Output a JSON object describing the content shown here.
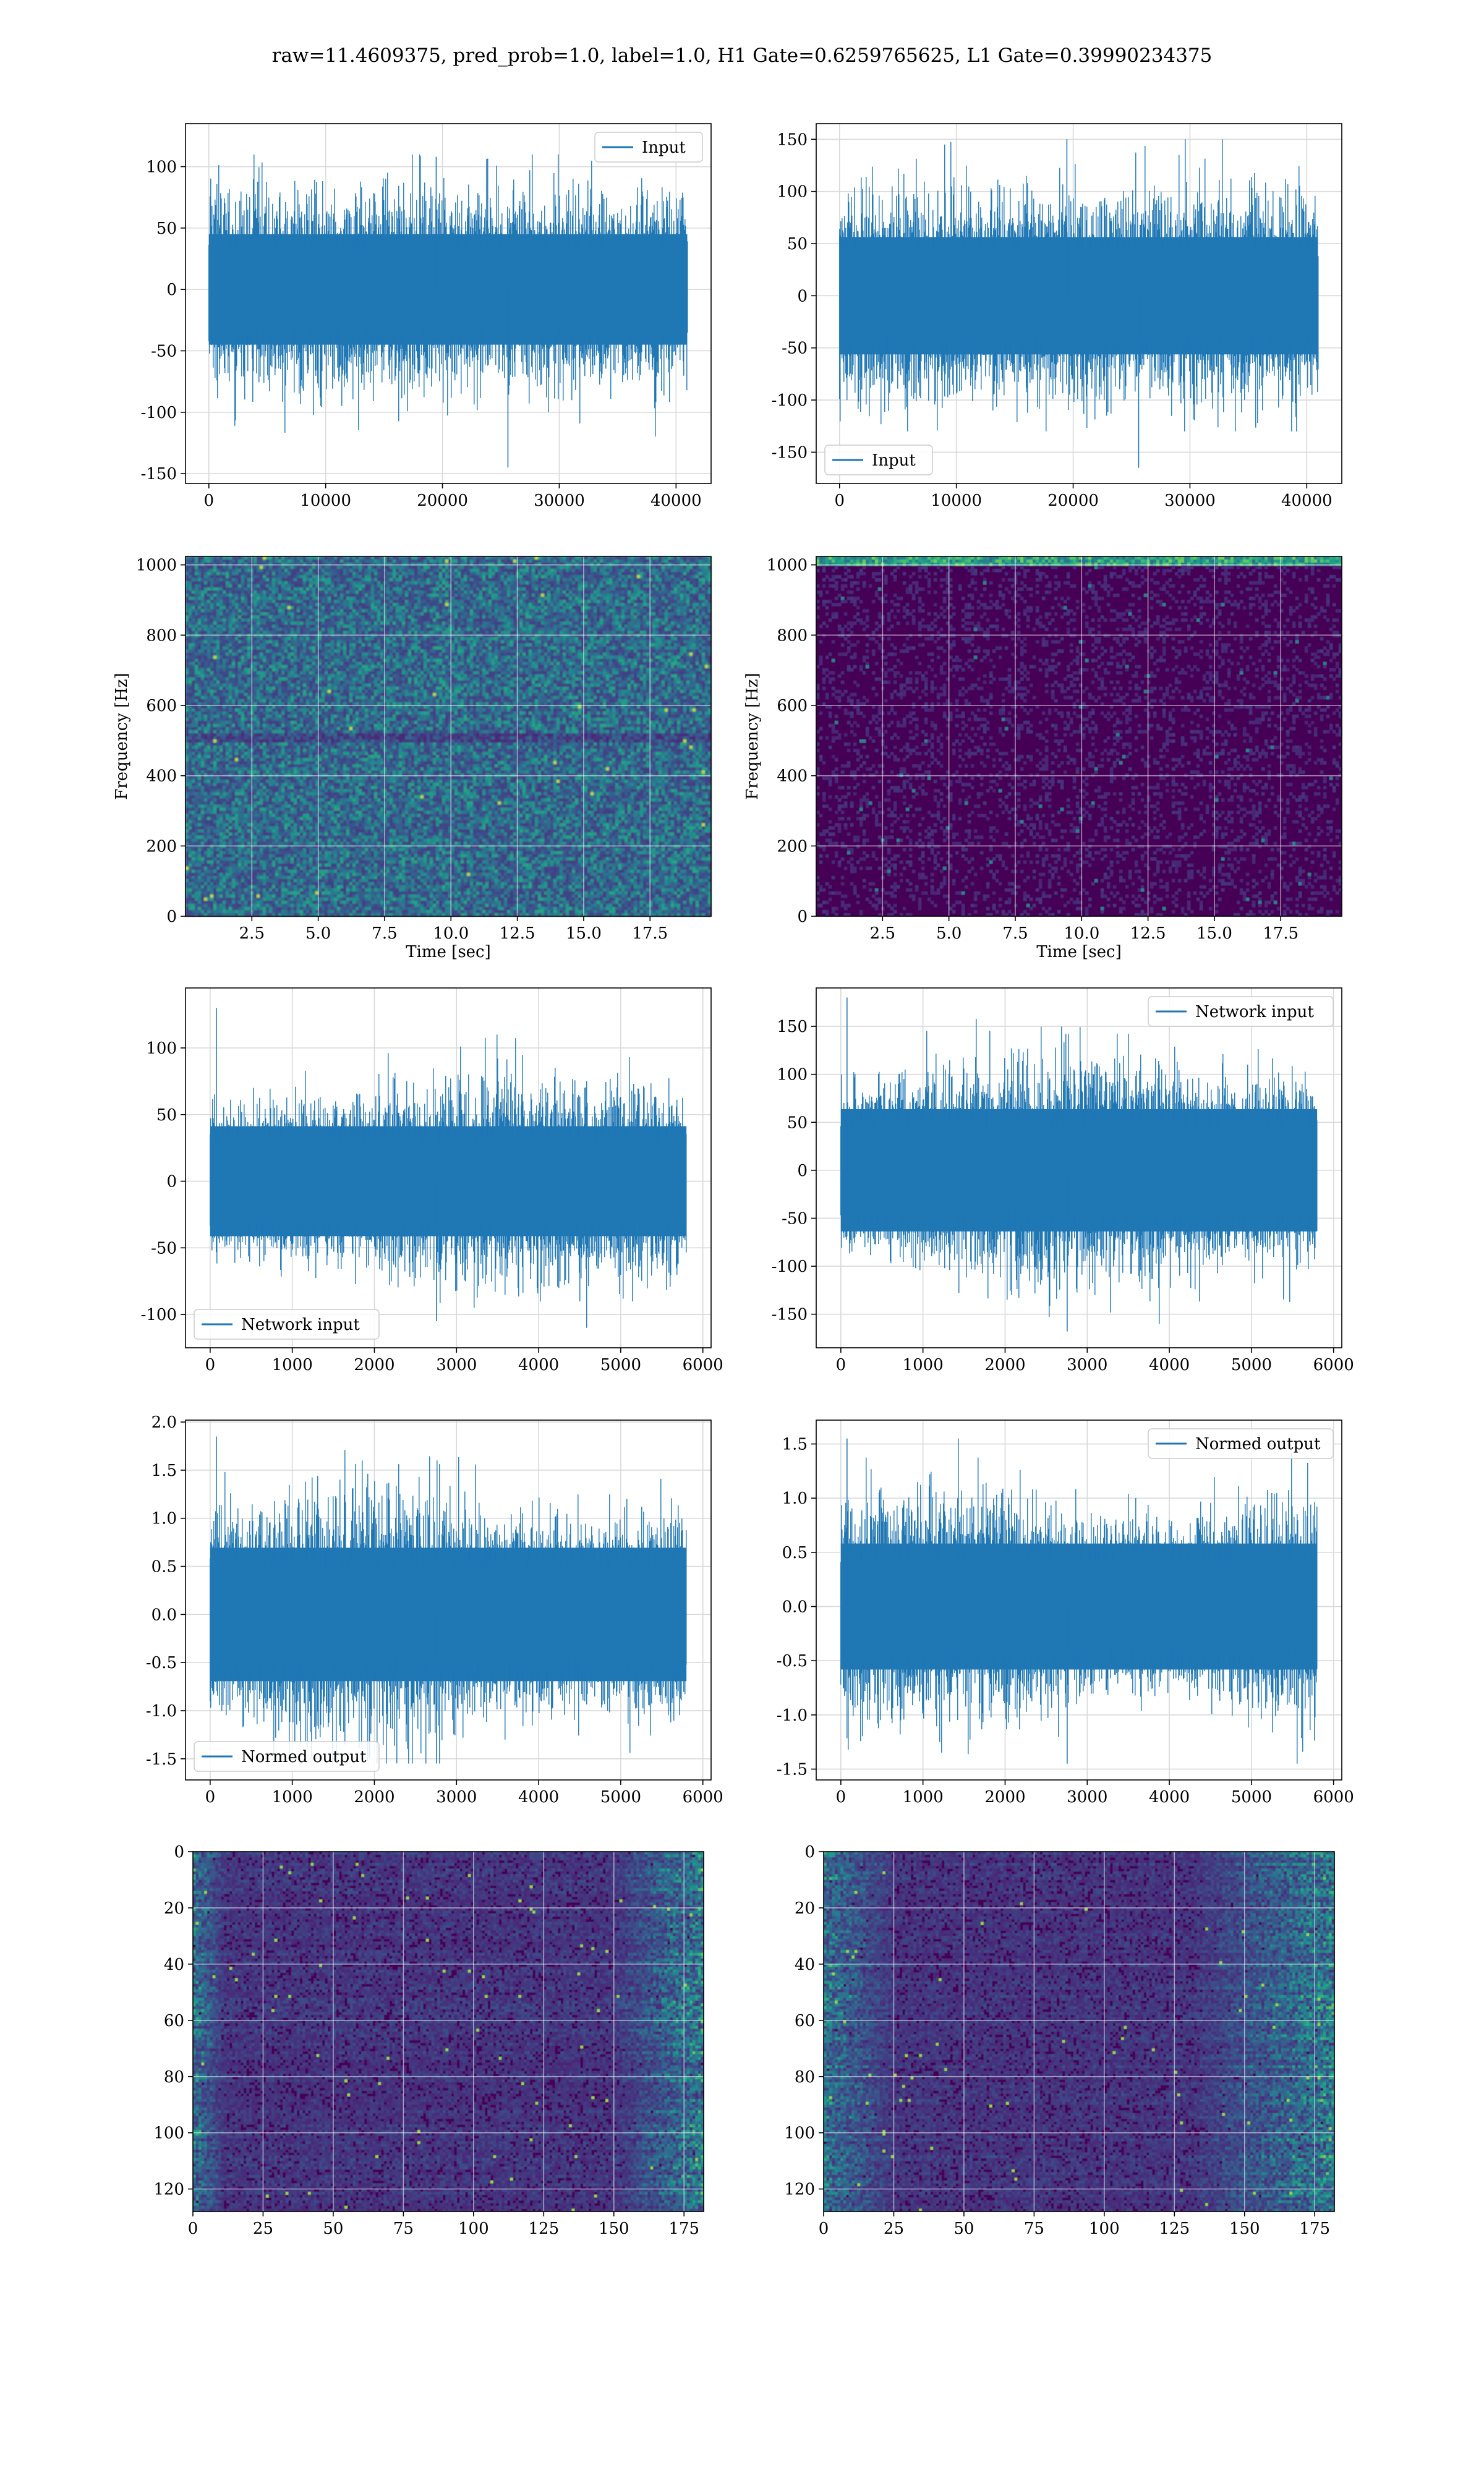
{
  "figure": {
    "title": "raw=11.4609375, pred_prob=1.0, label=1.0, H1 Gate=0.6259765625, L1 Gate=0.39990234375"
  },
  "colors": {
    "line": "#1f77b4",
    "grid": "#d9d9d9",
    "viridis_low": "#440154",
    "viridis_high": "#fde725"
  },
  "chart_data": [
    {
      "id": "h1-input",
      "type": "line",
      "series": [
        {
          "name": "Input",
          "n_points": 40960,
          "envelope": [
            -120,
            110
          ],
          "outliers": [
            -145,
            108
          ]
        }
      ],
      "xlim": [
        -2000,
        43000
      ],
      "ylim": [
        -158,
        135
      ],
      "xticks": [
        0,
        10000,
        20000,
        30000,
        40000
      ],
      "yticks": [
        -150,
        -100,
        -50,
        0,
        50,
        100
      ],
      "legend": "upper right",
      "grid": true,
      "xlabel": "",
      "ylabel": ""
    },
    {
      "id": "l1-input",
      "type": "line",
      "series": [
        {
          "name": "Input",
          "n_points": 40960,
          "envelope": [
            -130,
            150
          ],
          "outliers": [
            -165,
            150
          ]
        }
      ],
      "xlim": [
        -2000,
        43000
      ],
      "ylim": [
        -180,
        165
      ],
      "xticks": [
        0,
        10000,
        20000,
        30000,
        40000
      ],
      "yticks": [
        -150,
        -100,
        -50,
        0,
        50,
        100,
        150
      ],
      "legend": "lower left",
      "grid": true,
      "xlabel": "",
      "ylabel": ""
    },
    {
      "id": "h1-spectrogram",
      "type": "heatmap",
      "xlim": [
        0,
        19.8
      ],
      "ylim": [
        0,
        1024
      ],
      "xticks": [
        2.5,
        5.0,
        7.5,
        10.0,
        12.5,
        15.0,
        17.5
      ],
      "yticks": [
        0,
        200,
        400,
        600,
        800,
        1000
      ],
      "xlabel": "Time [sec]",
      "ylabel": "Frequency [Hz]",
      "colormap": "viridis",
      "grid": true,
      "intensity": "uniform noisy, brighter speckles"
    },
    {
      "id": "l1-spectrogram",
      "type": "heatmap",
      "xlim": [
        0,
        19.8
      ],
      "ylim": [
        0,
        1024
      ],
      "xticks": [
        2.5,
        5.0,
        7.5,
        10.0,
        12.5,
        15.0,
        17.5
      ],
      "yticks": [
        0,
        200,
        400,
        600,
        800,
        1000
      ],
      "xlabel": "Time [sec]",
      "ylabel": "Frequency [Hz]",
      "colormap": "viridis",
      "grid": true,
      "intensity": "mostly dark, bright band near 1000 Hz"
    },
    {
      "id": "h1-network-input",
      "type": "line",
      "series": [
        {
          "name": "Network input",
          "n_points": 5800,
          "envelope": [
            -110,
            110
          ],
          "outliers": [
            130,
            -105
          ]
        }
      ],
      "xlim": [
        -300,
        6100
      ],
      "ylim": [
        -125,
        145
      ],
      "xticks": [
        0,
        1000,
        2000,
        3000,
        4000,
        5000,
        6000
      ],
      "yticks": [
        -100,
        -50,
        0,
        50,
        100
      ],
      "legend": "lower left",
      "grid": true,
      "xlabel": "",
      "ylabel": ""
    },
    {
      "id": "l1-network-input",
      "type": "line",
      "series": [
        {
          "name": "Network input",
          "n_points": 5800,
          "envelope": [
            -160,
            170
          ],
          "outliers": [
            180,
            -168
          ]
        }
      ],
      "xlim": [
        -300,
        6100
      ],
      "ylim": [
        -185,
        190
      ],
      "xticks": [
        0,
        1000,
        2000,
        3000,
        4000,
        5000,
        6000
      ],
      "yticks": [
        -150,
        -100,
        -50,
        0,
        50,
        100,
        150
      ],
      "legend": "upper right",
      "grid": true,
      "xlabel": "",
      "ylabel": ""
    },
    {
      "id": "h1-normed-output",
      "type": "line",
      "series": [
        {
          "name": "Normed output",
          "n_points": 5800,
          "envelope": [
            -1.55,
            1.85
          ],
          "outliers": [
            1.85,
            -1.55
          ]
        }
      ],
      "xlim": [
        -300,
        6100
      ],
      "ylim": [
        -1.72,
        2.02
      ],
      "xticks": [
        0,
        1000,
        2000,
        3000,
        4000,
        5000,
        6000
      ],
      "yticks": [
        -1.5,
        -1.0,
        -0.5,
        0.0,
        0.5,
        1.0,
        1.5,
        2.0
      ],
      "legend": "lower left",
      "grid": true,
      "xlabel": "",
      "ylabel": ""
    },
    {
      "id": "l1-normed-output",
      "type": "line",
      "series": [
        {
          "name": "Normed output",
          "n_points": 5800,
          "envelope": [
            -1.45,
            1.55
          ],
          "outliers": [
            1.55,
            -1.45
          ]
        }
      ],
      "xlim": [
        -300,
        6100
      ],
      "ylim": [
        -1.6,
        1.72
      ],
      "xticks": [
        0,
        1000,
        2000,
        3000,
        4000,
        5000,
        6000
      ],
      "yticks": [
        -1.5,
        -1.0,
        -0.5,
        0.0,
        0.5,
        1.0,
        1.5
      ],
      "legend": "upper right",
      "grid": true,
      "xlabel": "",
      "ylabel": ""
    },
    {
      "id": "h1-feature-map",
      "type": "heatmap",
      "xlim": [
        0,
        182
      ],
      "ylim": [
        128,
        0
      ],
      "xticks": [
        0,
        25,
        50,
        75,
        100,
        125,
        150,
        175
      ],
      "yticks": [
        0,
        20,
        40,
        60,
        80,
        100,
        120
      ],
      "colormap": "viridis",
      "grid": true,
      "intensity": "bright streaks at left and right edges"
    },
    {
      "id": "l1-feature-map",
      "type": "heatmap",
      "xlim": [
        0,
        182
      ],
      "ylim": [
        128,
        0
      ],
      "xticks": [
        0,
        25,
        50,
        75,
        100,
        125,
        150,
        175
      ],
      "yticks": [
        0,
        20,
        40,
        60,
        80,
        100,
        120
      ],
      "colormap": "viridis",
      "grid": true,
      "intensity": "bright streaks at left and right edges"
    }
  ]
}
